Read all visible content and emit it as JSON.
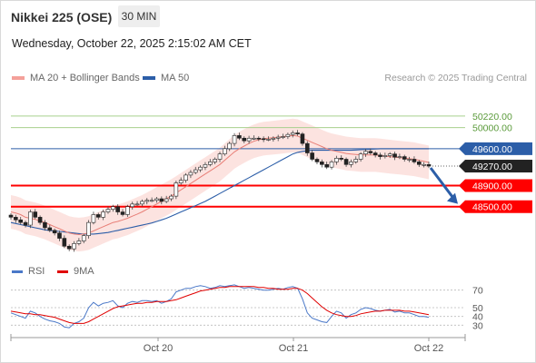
{
  "header": {
    "instrument": "Nikkei 225 (OSE)",
    "interval": "30 MIN",
    "datetime": "Wednesday, October 22, 2025 2:15:02 AM CET"
  },
  "legend": {
    "ma20_label": "MA 20 + Bollinger Bands",
    "ma50_label": "MA 50",
    "research": "Research © 2025 Trading Central",
    "rsi_label": "RSI",
    "rsi_ma_label": "9MA"
  },
  "colors": {
    "ma20": "#f4a09a",
    "ma50": "#2c5ea8",
    "band_fill": "#fbd9d6",
    "support": "#ff0000",
    "resistance_green": "#a8d08d",
    "pivot": "#2c5ea8",
    "arrow": "#2c5ea8",
    "candle_up": "#1c8b3a",
    "candle_down": "#cc1d1d"
  },
  "chart_data": [
    {
      "type": "candlestick",
      "x_ticks": [
        "Oct 20",
        "Oct 21",
        "Oct 22"
      ],
      "ylim": [
        47600,
        50700
      ],
      "price_levels": [
        {
          "label": "50220.00",
          "value": 50220,
          "kind": "resistance"
        },
        {
          "label": "50000.00",
          "value": 50000,
          "kind": "resistance"
        },
        {
          "label": "49600.00",
          "value": 49600,
          "kind": "pivot"
        },
        {
          "label": "49270.00",
          "value": 49270,
          "kind": "last"
        },
        {
          "label": "48900.00",
          "value": 48900,
          "kind": "support"
        },
        {
          "label": "48500.00",
          "value": 48500,
          "kind": "support"
        }
      ],
      "forecast": "down",
      "close_series": [
        48300,
        48250,
        48200,
        48150,
        48400,
        48300,
        48200,
        48100,
        48050,
        48000,
        47900,
        47750,
        47700,
        47800,
        47850,
        47950,
        48200,
        48350,
        48300,
        48400,
        48450,
        48500,
        48400,
        48350,
        48500,
        48550,
        48550,
        48600,
        48620,
        48620,
        48650,
        48600,
        48650,
        48700,
        48950,
        49000,
        49100,
        49150,
        49200,
        49250,
        49300,
        49350,
        49400,
        49500,
        49600,
        49700,
        49850,
        49800,
        49750,
        49800,
        49800,
        49790,
        49780,
        49780,
        49800,
        49820,
        49830,
        49870,
        49900,
        49880,
        49700,
        49520,
        49400,
        49350,
        49300,
        49250,
        49350,
        49420,
        49400,
        49300,
        49350,
        49400,
        49500,
        49550,
        49520,
        49480,
        49450,
        49470,
        49500,
        49440,
        49450,
        49400,
        49400,
        49350,
        49300,
        49300,
        49270
      ],
      "ma20_series": [
        48400,
        48380,
        48350,
        48300,
        48280,
        48260,
        48230,
        48200,
        48160,
        48120,
        48080,
        48040,
        48000,
        47980,
        47970,
        47980,
        48000,
        48040,
        48080,
        48120,
        48160,
        48200,
        48220,
        48250,
        48280,
        48320,
        48360,
        48400,
        48450,
        48500,
        48550,
        48600,
        48650,
        48700,
        48760,
        48820,
        48880,
        48940,
        49000,
        49060,
        49120,
        49180,
        49240,
        49300,
        49380,
        49460,
        49540,
        49600,
        49650,
        49700,
        49740,
        49770,
        49790,
        49800,
        49810,
        49820,
        49830,
        49840,
        49850,
        49840,
        49800,
        49760,
        49720,
        49680,
        49640,
        49600,
        49570,
        49550,
        49530,
        49510,
        49500,
        49490,
        49480,
        49480,
        49480,
        49480,
        49470,
        49460,
        49450,
        49440,
        49430,
        49420,
        49410,
        49400,
        49380,
        49360,
        49340
      ],
      "ma50_series": [
        48200,
        48180,
        48160,
        48140,
        48120,
        48100,
        48080,
        48060,
        48050,
        48040,
        48030,
        48020,
        48010,
        48000,
        47990,
        47980,
        47980,
        47980,
        47990,
        48000,
        48010,
        48030,
        48050,
        48070,
        48090,
        48110,
        48130,
        48150,
        48170,
        48190,
        48220,
        48250,
        48280,
        48320,
        48360,
        48400,
        48440,
        48480,
        48520,
        48560,
        48600,
        48650,
        48700,
        48750,
        48800,
        48850,
        48900,
        48950,
        49000,
        49050,
        49100,
        49150,
        49200,
        49250,
        49300,
        49350,
        49400,
        49450,
        49500,
        49530,
        49550,
        49560,
        49570,
        49570,
        49570,
        49570,
        49570,
        49570,
        49570,
        49570,
        49570,
        49575,
        49580,
        49585,
        49590,
        49595,
        49600,
        49600,
        49600,
        49600,
        49600,
        49600,
        49600,
        49600,
        49600,
        49600,
        49600
      ]
    },
    {
      "type": "line",
      "name": "RSI",
      "ylim": [
        20,
        80
      ],
      "y_ticks": [
        70,
        50,
        40,
        30
      ],
      "series": [
        {
          "name": "RSI",
          "values": [
            44,
            42,
            40,
            38,
            46,
            44,
            40,
            37,
            35,
            34,
            32,
            28,
            27,
            32,
            34,
            38,
            50,
            56,
            52,
            55,
            56,
            58,
            52,
            50,
            55,
            57,
            56,
            58,
            58,
            57,
            58,
            55,
            57,
            60,
            68,
            70,
            72,
            72,
            74,
            75,
            74,
            72,
            73,
            75,
            74,
            75,
            76,
            74,
            72,
            73,
            72,
            71,
            70,
            70,
            71,
            72,
            71,
            73,
            74,
            72,
            60,
            44,
            38,
            36,
            34,
            33,
            40,
            46,
            44,
            38,
            42,
            44,
            48,
            50,
            49,
            47,
            46,
            47,
            48,
            45,
            46,
            44,
            44,
            42,
            40,
            40,
            39
          ]
        },
        {
          "name": "9MA",
          "values": [
            46,
            45,
            44,
            43,
            43,
            42,
            42,
            41,
            40,
            39,
            37,
            35,
            33,
            32,
            32,
            32,
            34,
            37,
            40,
            43,
            46,
            49,
            51,
            52,
            53,
            54,
            55,
            55,
            56,
            56,
            57,
            57,
            57,
            58,
            59,
            61,
            63,
            65,
            67,
            69,
            70,
            71,
            72,
            73,
            73,
            74,
            74,
            74,
            74,
            74,
            74,
            73,
            73,
            72,
            72,
            71,
            71,
            71,
            72,
            72,
            70,
            66,
            61,
            56,
            51,
            47,
            44,
            42,
            41,
            40,
            40,
            41,
            43,
            44,
            45,
            46,
            46,
            47,
            47,
            47,
            47,
            46,
            46,
            45,
            44,
            43,
            42
          ]
        }
      ]
    }
  ]
}
